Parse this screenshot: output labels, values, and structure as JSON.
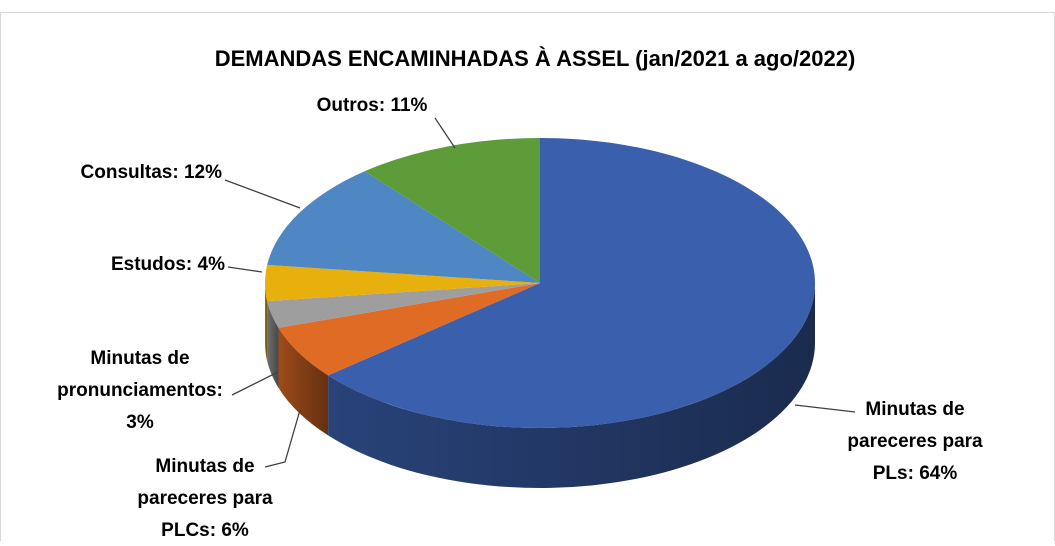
{
  "chart_data": {
    "type": "pie3d",
    "title": "DEMANDAS ENCAMINHADAS À ASSEL (jan/2021 a ago/2022)",
    "label_lines": [
      [
        "Minutas de",
        "pareceres para",
        "PLs: 64%"
      ],
      [
        "Minutas de",
        "pareceres para",
        "PLCs: 6%"
      ],
      [
        "Minutas de",
        "pronunciamentos:",
        "3%"
      ],
      [
        "Estudos: 4%"
      ],
      [
        "Consultas: 12%"
      ],
      [
        "Outros: 11%"
      ]
    ],
    "values": [
      64,
      6,
      3,
      4,
      12,
      11
    ],
    "colors": [
      "#3a5fad",
      "#e06b25",
      "#9e9e9e",
      "#e8b00c",
      "#4f87c4",
      "#5e9c3a"
    ]
  }
}
